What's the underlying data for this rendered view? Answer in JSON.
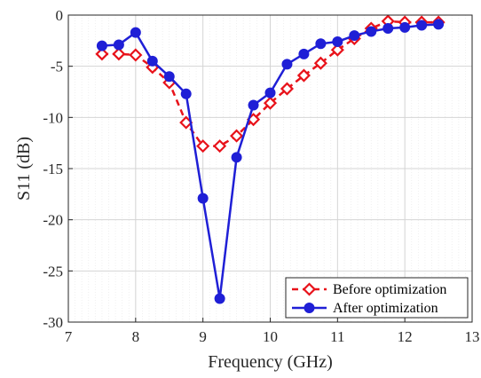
{
  "chart_data": {
    "type": "line",
    "xlabel": "Frequency (GHz)",
    "ylabel": "S11 (dB)",
    "xlim": [
      7,
      13
    ],
    "ylim": [
      -30,
      0
    ],
    "xticks": [
      7,
      8,
      9,
      10,
      11,
      12,
      13
    ],
    "yticks": [
      0,
      -5,
      -10,
      -15,
      -20,
      -25,
      -30
    ],
    "xtick_labels": [
      "7",
      "8",
      "9",
      "10",
      "11",
      "12",
      "13"
    ],
    "ytick_labels": [
      "0",
      "-5",
      "-10",
      "-15",
      "-20",
      "-25",
      "-30"
    ],
    "grid": true,
    "legend_position": "bottom-right",
    "x": [
      7.5,
      7.75,
      8.0,
      8.25,
      8.5,
      8.75,
      9.0,
      9.25,
      9.5,
      9.75,
      10.0,
      10.25,
      10.5,
      10.75,
      11.0,
      11.25,
      11.5,
      11.75,
      12.0,
      12.25,
      12.5
    ],
    "series": [
      {
        "name": "Before optimization",
        "color": "#e8121a",
        "line_style": "dashed",
        "marker": "diamond-open",
        "values": [
          -3.8,
          -3.8,
          -3.9,
          -5.1,
          -6.6,
          -10.5,
          -12.8,
          -12.8,
          -11.8,
          -10.2,
          -8.6,
          -7.2,
          -5.9,
          -4.7,
          -3.4,
          -2.3,
          -1.3,
          -0.6,
          -0.7,
          -0.7,
          -0.7
        ]
      },
      {
        "name": "After optimization",
        "color": "#1f1fd6",
        "line_style": "solid",
        "marker": "circle-filled",
        "values": [
          -3.0,
          -2.9,
          -1.7,
          -4.5,
          -6.0,
          -7.7,
          -17.9,
          -27.7,
          -13.9,
          -8.8,
          -7.6,
          -4.8,
          -3.8,
          -2.8,
          -2.6,
          -2.0,
          -1.6,
          -1.3,
          -1.2,
          -1.0,
          -0.9
        ]
      }
    ]
  }
}
